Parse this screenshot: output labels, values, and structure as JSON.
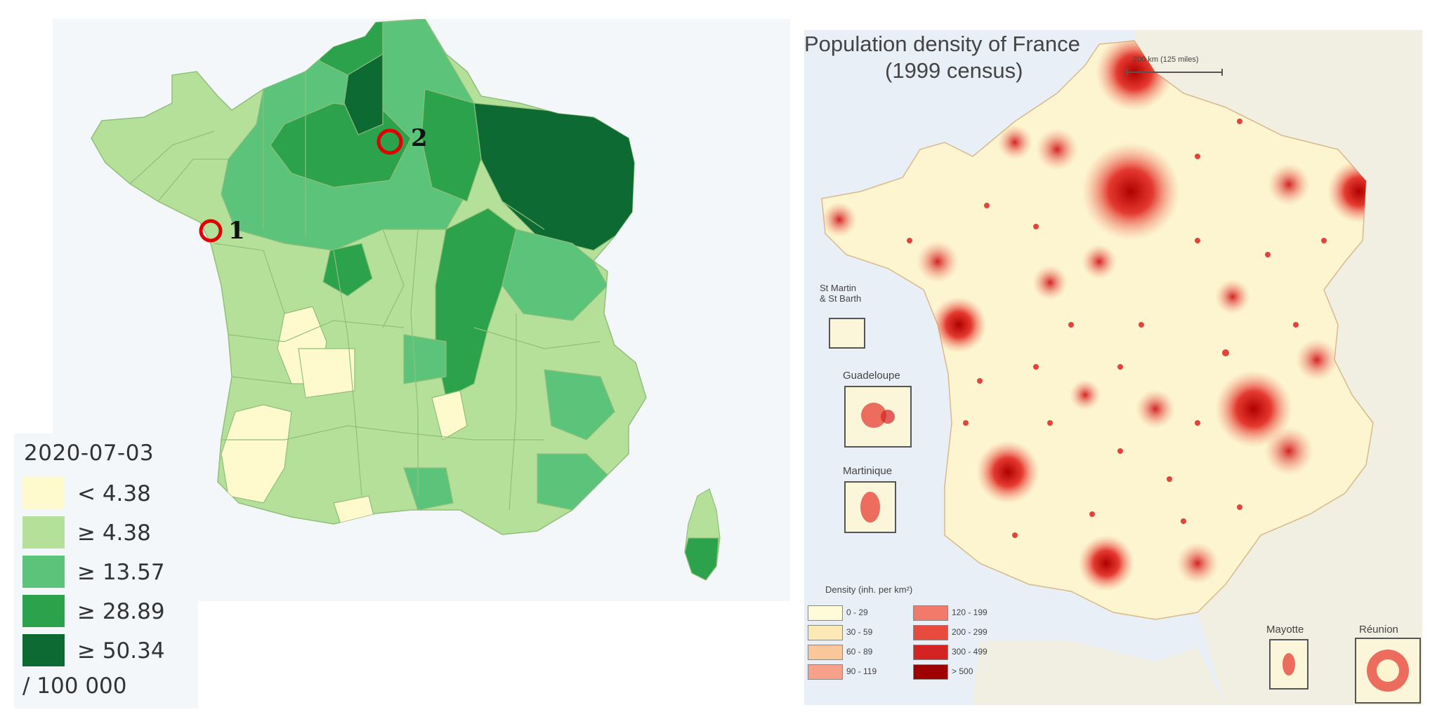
{
  "left_map": {
    "legend": {
      "date": "2020-07-03",
      "unit": "/ 100 000",
      "items": [
        {
          "label": "< 4.38",
          "color": "#fffacd"
        },
        {
          "label": "≥ 4.38",
          "color": "#b5e09a"
        },
        {
          "label": "≥ 13.57",
          "color": "#5cc47a"
        },
        {
          "label": "≥ 28.89",
          "color": "#2ca24d"
        },
        {
          "label": "≥ 50.34",
          "color": "#0e6a33"
        }
      ]
    },
    "markers": [
      {
        "label": "1",
        "color": "#e00000"
      },
      {
        "label": "2",
        "color": "#e00000"
      }
    ]
  },
  "right_map": {
    "title_line1": "Population density of France",
    "title_line2": "(1999 census)",
    "scale_label": "200 km (125 miles)",
    "insets": [
      "St Martin & St Barth",
      "Guadeloupe",
      "Martinique",
      "Mayotte",
      "Réunion"
    ],
    "legend": {
      "title": "Density (inh. per km²)",
      "items": [
        {
          "label": "0 - 29",
          "color": "#fffbd9"
        },
        {
          "label": "30 - 59",
          "color": "#fde9b8"
        },
        {
          "label": "60 - 89",
          "color": "#f9c79a"
        },
        {
          "label": "90 - 119",
          "color": "#f7a08a"
        },
        {
          "label": "120 - 199",
          "color": "#f27a6a"
        },
        {
          "label": "200 - 299",
          "color": "#e84a3e"
        },
        {
          "label": "300 - 499",
          "color": "#d42323"
        },
        {
          "label": "> 500",
          "color": "#9e0000"
        }
      ]
    }
  }
}
